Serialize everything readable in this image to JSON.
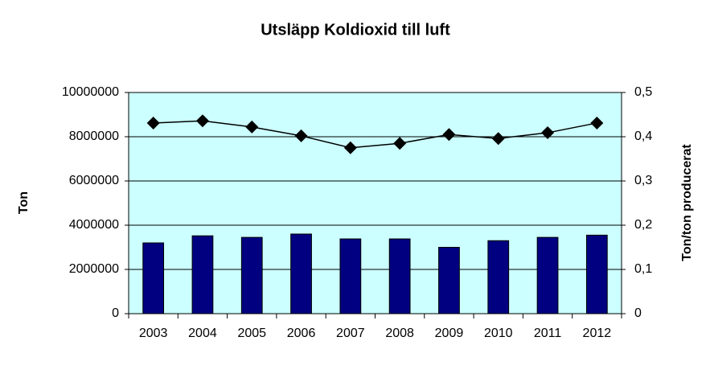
{
  "chart_data": {
    "type": "bar",
    "title": "Utsläpp Koldioxid till luft",
    "ylabel": "Ton",
    "y2label": "Ton/ton producerat",
    "categories": [
      "2003",
      "2004",
      "2005",
      "2006",
      "2007",
      "2008",
      "2009",
      "2010",
      "2011",
      "2012"
    ],
    "series": [
      {
        "type": "bar",
        "color": "#000080",
        "values": [
          3200000,
          3520000,
          3450000,
          3600000,
          3380000,
          3380000,
          3000000,
          3300000,
          3450000,
          3550000
        ]
      },
      {
        "type": "line",
        "axis": "y2",
        "color": "#000000",
        "values": [
          0.431,
          0.436,
          0.422,
          0.402,
          0.375,
          0.385,
          0.405,
          0.396,
          0.409,
          0.431
        ]
      }
    ],
    "ylim": [
      0,
      10000000
    ],
    "yticks": [
      0,
      2000000,
      4000000,
      6000000,
      8000000,
      10000000
    ],
    "y2lim": [
      0,
      0.5
    ],
    "y2ticks": [
      {
        "value": 0,
        "label": "0"
      },
      {
        "value": 0.1,
        "label": "0,1"
      },
      {
        "value": 0.2,
        "label": "0,2"
      },
      {
        "value": 0.3,
        "label": "0,3"
      },
      {
        "value": 0.4,
        "label": "0,4"
      },
      {
        "value": 0.5,
        "label": "0,5"
      }
    ],
    "grid": true,
    "plot_background": "#ccffff"
  }
}
